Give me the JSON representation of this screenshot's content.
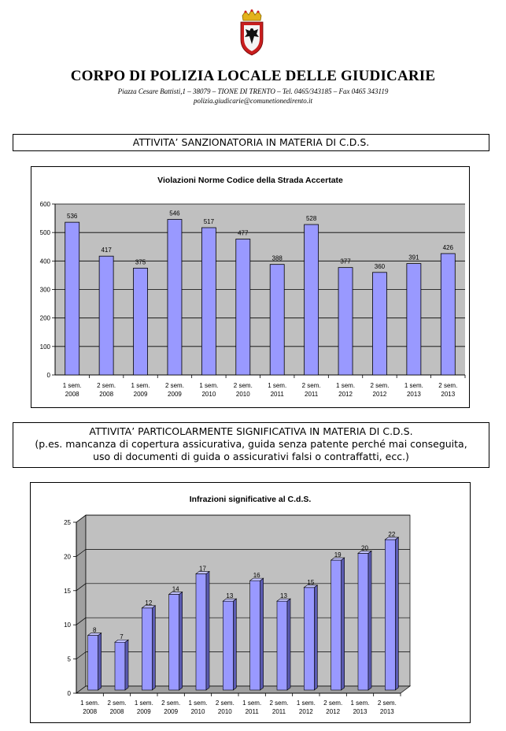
{
  "header": {
    "organization": "CORPO DI POLIZIA LOCALE DELLE GIUDICARIE",
    "address": "Piazza Cesare Battisti,1 – 38079 – TIONE DI TRENTO – Tel. 0465/343185 – Fax 0465 343119",
    "email": "polizia.giudicarie@comunetionedirento.it"
  },
  "sections": {
    "first": "ATTIVITA’ SANZIONATORIA IN MATERIA DI C.D.S.",
    "second_line1": "ATTIVITA’ PARTICOLARMENTE SIGNIFICATIVA IN MATERIA DI C.D.S.",
    "second_line2": "(p.es. mancanza di copertura assicurativa, guida senza patente perché mai conseguita,",
    "second_line3": "uso di documenti di guida o assicurativi falsi o contraffatti, ecc.)"
  },
  "colors": {
    "bar_face": "#9999ff",
    "bar_side": "#5a5ab0",
    "bar_top": "#c4c4ff",
    "plot_bg": "#c0c0c0",
    "floor": "#a0a0a0"
  },
  "chart_data": [
    {
      "type": "bar",
      "title": "Violazioni Norme Codice della Strada Accertate",
      "categories": [
        [
          "1 sem.",
          "2008"
        ],
        [
          "2 sem.",
          "2008"
        ],
        [
          "1 sem.",
          "2009"
        ],
        [
          "2 sem.",
          "2009"
        ],
        [
          "1 sem.",
          "2010"
        ],
        [
          "2 sem.",
          "2010"
        ],
        [
          "1 sem.",
          "2011"
        ],
        [
          "2 sem.",
          "2011"
        ],
        [
          "1 sem.",
          "2012"
        ],
        [
          "2 sem.",
          "2012"
        ],
        [
          "1 sem.",
          "2013"
        ],
        [
          "2 sem.",
          "2013"
        ]
      ],
      "values": [
        536,
        417,
        375,
        546,
        517,
        477,
        388,
        528,
        377,
        360,
        391,
        426
      ],
      "value_labels": [
        "536",
        "417",
        "375",
        "546",
        "517",
        "477",
        "388",
        "528",
        "377",
        "360",
        "391",
        "426"
      ],
      "ylim": [
        0,
        600
      ],
      "yticks": [
        0,
        100,
        200,
        300,
        400,
        500,
        600
      ],
      "ytick_labels": [
        "0",
        "100",
        "200",
        "300",
        "400",
        "500",
        "600"
      ],
      "xlabel": "",
      "ylabel": "",
      "grid": true,
      "legend": "none"
    },
    {
      "type": "bar",
      "style": "3d",
      "title": "Infrazioni significative al C.d.S.",
      "categories": [
        [
          "1 sem.",
          "2008"
        ],
        [
          "2 sem.",
          "2008"
        ],
        [
          "1 sem.",
          "2009"
        ],
        [
          "2 sem.",
          "2009"
        ],
        [
          "1 sem.",
          "2010"
        ],
        [
          "2 sem.",
          "2010"
        ],
        [
          "1 sem.",
          "2011"
        ],
        [
          "2 sem.",
          "2011"
        ],
        [
          "1 sem.",
          "2012"
        ],
        [
          "2 sem.",
          "2012"
        ],
        [
          "1 sem.",
          "2013"
        ],
        [
          "2 sem.",
          "2013"
        ]
      ],
      "values": [
        8,
        7,
        12,
        14,
        17,
        13,
        16,
        13,
        15,
        19,
        20,
        22
      ],
      "value_labels": [
        "8",
        "7",
        "12",
        "14",
        "17",
        "13",
        "16",
        "13",
        "15",
        "19",
        "20",
        "22"
      ],
      "ylim": [
        0,
        25
      ],
      "yticks": [
        0,
        5,
        10,
        15,
        20,
        25
      ],
      "ytick_labels": [
        "0",
        "5",
        "10",
        "15",
        "20",
        "25"
      ],
      "xlabel": "",
      "ylabel": "",
      "grid": true,
      "legend": "none"
    }
  ]
}
